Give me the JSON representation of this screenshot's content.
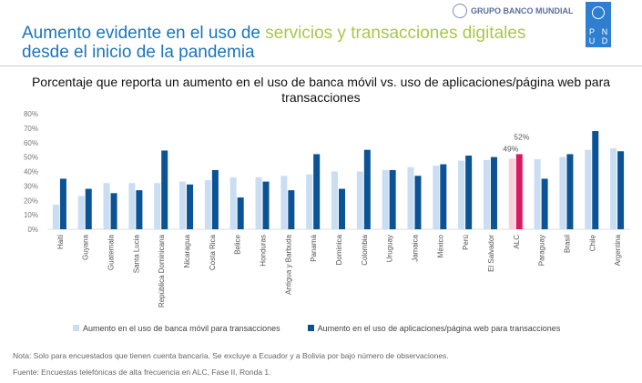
{
  "header": {
    "title_part1": "Aumento evidente en el uso de ",
    "title_highlight": "servicios y transacciones digitales",
    "title_part2": "desde el inicio de la pandemia",
    "logo_wb": "GRUPO BANCO MUNDIAL",
    "logo_pnud": [
      "P",
      "N",
      "U",
      "D"
    ]
  },
  "chart_data": {
    "type": "bar",
    "title": "Porcentaje que reporta un aumento en el uso de banca móvil vs. uso de aplicaciones/página web para transacciones",
    "categories": [
      "Haiti",
      "Guyana",
      "Guatemala",
      "Santa Lucia",
      "República Dominicana",
      "Nicaragua",
      "Costa Rica",
      "Belice",
      "Honduras",
      "Antigua y Barbuda",
      "Panamá",
      "Dominica",
      "Colombia",
      "Uruguay",
      "Jamaica",
      "México",
      "Perú",
      "El Salvador",
      "ALC",
      "Paraguay",
      "Brasil",
      "Chile",
      "Argentina"
    ],
    "series": [
      {
        "name": "Aumento en el uso de banca móvil para transacciones",
        "color": "#c9def2",
        "values": [
          17,
          23,
          32,
          32,
          32,
          33,
          34,
          36,
          36,
          37,
          38,
          40,
          40,
          41,
          43,
          44,
          47.5,
          48,
          49,
          48.5,
          50,
          55,
          56
        ]
      },
      {
        "name": "Aumento en el uso de aplicaciones/página web para transacciones",
        "color": "#0b5394",
        "values": [
          35,
          28,
          25,
          27,
          54.5,
          31,
          41,
          22,
          33,
          27,
          52,
          28,
          55,
          41,
          37,
          45,
          51,
          50,
          52,
          35,
          52,
          68,
          54
        ]
      }
    ],
    "highlight": {
      "category": "ALC",
      "colors": [
        "#f6d3dc",
        "#d81b60"
      ],
      "labels": [
        "49%",
        "52%"
      ]
    },
    "yticks": [
      "0%",
      "10%",
      "20%",
      "30%",
      "40%",
      "50%",
      "60%",
      "70%",
      "80%"
    ],
    "ylim": [
      0,
      80
    ],
    "grid": false,
    "legend": "bottom"
  },
  "notes": {
    "nota": "Nota: Solo para encuestados que tienen cuenta bancaria. Se excluye a Ecuador y a Bolivia por bajo número de observaciones.",
    "fuente": "Fuente: Encuestas telefónicas de alta frecuencia en ALC, Fase II, Ronda 1."
  }
}
